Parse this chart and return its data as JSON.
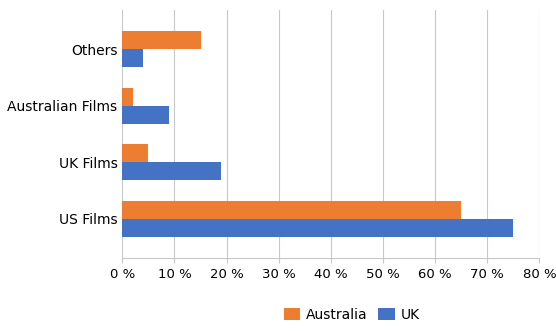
{
  "categories": [
    "US Films",
    "UK Films",
    "Australian Films",
    "Others"
  ],
  "australia": [
    65,
    5,
    2,
    15
  ],
  "uk": [
    75,
    19,
    9,
    4
  ],
  "australia_color": "#ED7D31",
  "uk_color": "#4472C4",
  "xlim": [
    0,
    80
  ],
  "xtick_values": [
    0,
    10,
    20,
    30,
    40,
    50,
    60,
    70,
    80
  ],
  "legend_labels": [
    "Australia",
    "UK"
  ],
  "background_color": "#FFFFFF",
  "bar_height": 0.32,
  "bar_gap": 0.0,
  "grid_color": "#C8C8C8",
  "ylabel_fontsize": 10,
  "xlabel_fontsize": 9.5
}
